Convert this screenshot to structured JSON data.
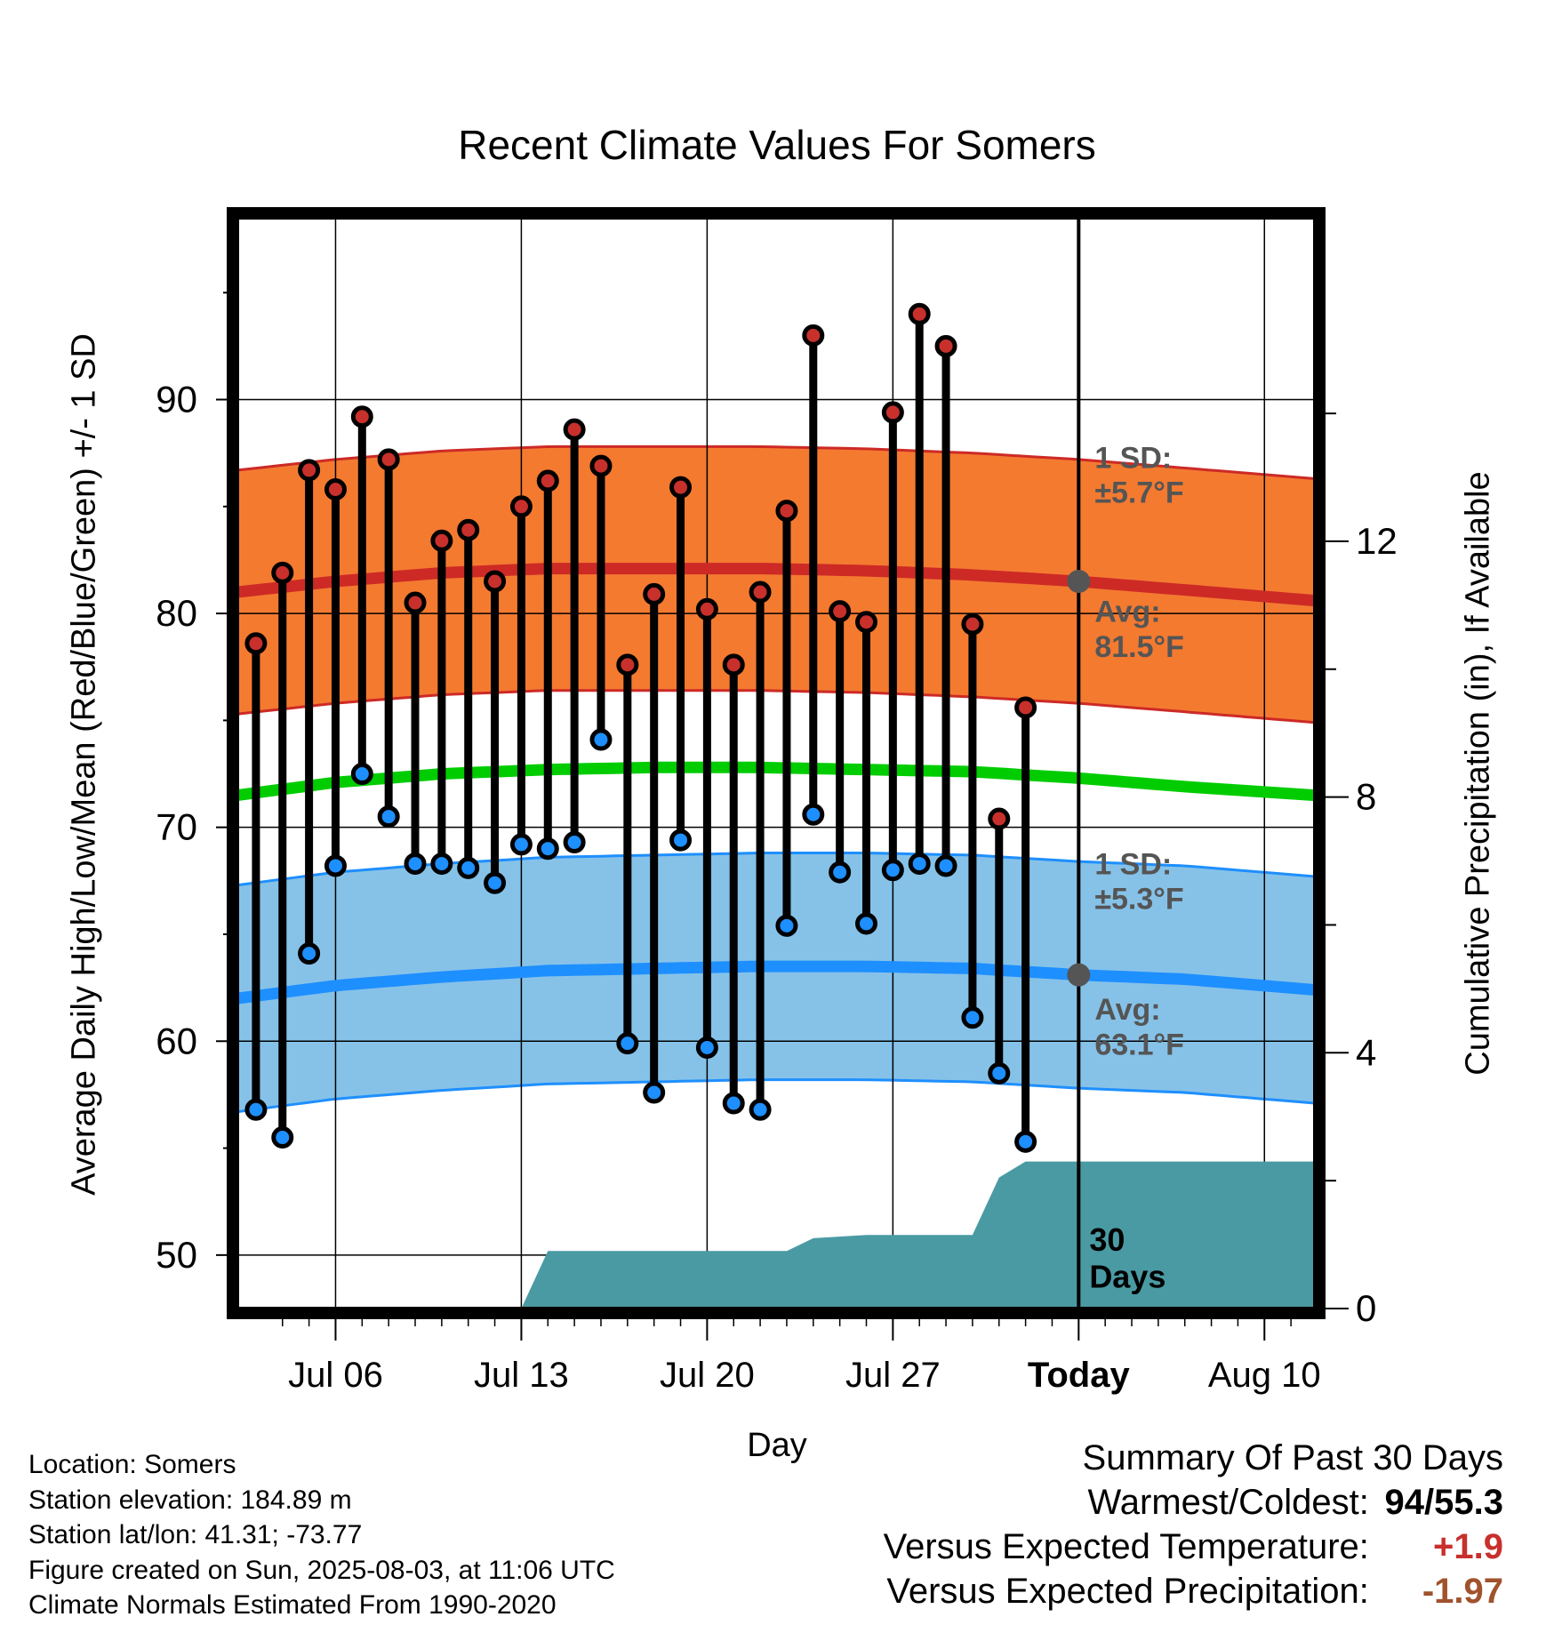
{
  "chart_data": {
    "type": "line",
    "title": "Recent Climate Values For Somers",
    "xlabel": "Day",
    "ylabel": "Average Daily High/Low/Mean (Red/Blue/Green) +/- 1 SD",
    "y2label": "Cumulative Precipitation (in), If Available",
    "x_tick_labels": [
      "Jul 06",
      "Jul 13",
      "Jul 20",
      "Jul 27",
      "Today",
      "Aug 10"
    ],
    "x_tick_days": [
      6,
      13,
      20,
      27,
      34,
      41
    ],
    "today_day": 34,
    "xlim": [
      2.3,
      42.9
    ],
    "ylim": [
      47.5,
      98.5
    ],
    "y_ticks": [
      50,
      60,
      70,
      80,
      90
    ],
    "y2lim": [
      0,
      17.06
    ],
    "y2_ticks": [
      0,
      4,
      8,
      12
    ],
    "grid": true,
    "days": [
      3,
      4,
      5,
      6,
      7,
      8,
      9,
      10,
      11,
      12,
      13,
      14,
      15,
      16,
      17,
      18,
      19,
      20,
      21,
      22,
      23,
      24,
      25,
      26,
      27,
      28,
      29,
      30,
      31,
      32,
      33
    ],
    "observed_high": [
      78.6,
      81.9,
      86.7,
      85.8,
      89.2,
      87.2,
      80.5,
      83.4,
      83.9,
      81.5,
      85.0,
      86.2,
      88.6,
      86.9,
      77.6,
      80.9,
      85.9,
      80.2,
      77.6,
      81.0,
      84.8,
      93.0,
      80.1,
      79.6,
      89.4,
      94.0,
      92.5,
      79.5,
      70.4,
      75.6
    ],
    "observed_high_days": [
      3,
      4,
      5,
      6,
      7,
      8,
      9,
      10,
      11,
      12,
      13,
      14,
      15,
      16,
      17,
      18,
      19,
      20,
      21,
      22,
      23,
      24,
      25,
      26,
      27,
      28,
      29,
      30,
      31,
      32
    ],
    "observed_low": [
      56.8,
      55.5,
      64.1,
      68.2,
      72.5,
      70.5,
      68.3,
      68.3,
      68.1,
      67.4,
      69.2,
      69.0,
      69.3,
      74.1,
      59.9,
      57.6,
      69.4,
      59.7,
      57.1,
      56.8,
      65.4,
      70.6,
      67.9,
      65.5,
      68.0,
      68.3,
      68.2,
      61.1,
      58.5,
      55.3
    ],
    "normals": {
      "x": [
        2.3,
        6,
        10,
        14,
        18,
        22,
        26,
        30,
        34,
        38,
        42.9
      ],
      "high_avg": [
        81.0,
        81.5,
        81.9,
        82.1,
        82.1,
        82.1,
        82.0,
        81.8,
        81.5,
        81.1,
        80.6
      ],
      "high_sd": 5.7,
      "mean_avg": [
        71.5,
        72.1,
        72.5,
        72.7,
        72.8,
        72.8,
        72.7,
        72.6,
        72.3,
        71.9,
        71.5
      ],
      "low_avg": [
        62.0,
        62.6,
        63.0,
        63.3,
        63.4,
        63.5,
        63.5,
        63.4,
        63.1,
        62.9,
        62.4
      ],
      "low_sd": 5.3
    },
    "precipitation": {
      "x": [
        2.3,
        13,
        14,
        15,
        23,
        24,
        26,
        30,
        31,
        32,
        33,
        42.9
      ],
      "cumulative": [
        0,
        0,
        0.9,
        0.9,
        0.9,
        1.1,
        1.15,
        1.15,
        2.05,
        2.3,
        2.3,
        2.3
      ]
    },
    "legend_labels": {
      "high_sd": "1 SD:\n±5.7°F",
      "high_avg": "Avg:\n81.5°F",
      "low_sd": "1 SD:\n±5.3°F",
      "low_avg": "Avg:\n63.1°F",
      "precip": "30\nDays"
    },
    "colors": {
      "high_band": "#f47a30",
      "high_line": "#cd2a26",
      "mean_line": "#00cc00",
      "low_band": "#86c2e8",
      "low_line": "#1e8fff",
      "precip_fill": "#4a9aa3",
      "high_dot": "#c8302c",
      "low_dot": "#1e8fff",
      "annotation": "#555555"
    }
  },
  "info": {
    "location": "Location: Somers",
    "elevation": "Station elevation: 184.89 m",
    "latlon": "Station lat/lon: 41.31; -73.77",
    "created": "Figure created on Sun, 2025-08-03, at 11:06 UTC",
    "normals": "Climate Normals Estimated From 1990-2020"
  },
  "summary": {
    "heading": "Summary Of Past 30 Days",
    "warm_cold_label": "Warmest/Coldest:",
    "warm_cold_value": "94/55.3",
    "temp_label": "Versus Expected Temperature:",
    "temp_value": "+1.9",
    "precip_label": "Versus Expected Precipitation:",
    "precip_value": "-1.97"
  }
}
